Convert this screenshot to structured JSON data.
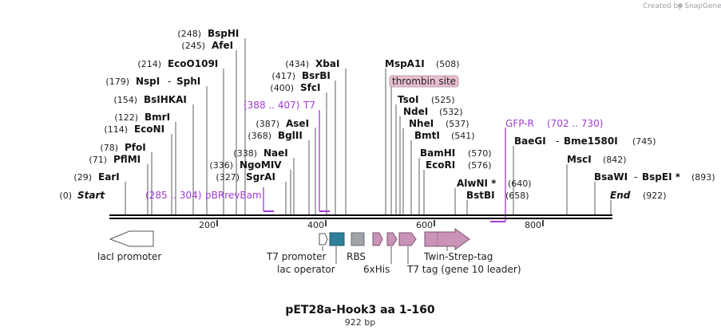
{
  "credit": "Created by SnapGene",
  "map": {
    "title": "pET28a-Hook3 aa 1-160",
    "length": "922 bp",
    "ticks": [
      "200",
      "400",
      "600",
      "800"
    ],
    "sites": [
      {
        "id": "bsphi",
        "pos": "(248)",
        "name": "BspHI"
      },
      {
        "id": "afei",
        "pos": "(245)",
        "name": "AfeI"
      },
      {
        "id": "ecoo109i",
        "pos": "(214)",
        "name": "EcoO109I"
      },
      {
        "id": "nspi",
        "pos": "(179)",
        "name": "NspI"
      },
      {
        "id": "sphi",
        "name": "SphI"
      },
      {
        "id": "bslhkai",
        "pos": "(154)",
        "name": "BsIHKAI"
      },
      {
        "id": "bmri",
        "pos": "(122)",
        "name": "BmrI"
      },
      {
        "id": "econi",
        "pos": "(114)",
        "name": "EcoNI"
      },
      {
        "id": "pfoi",
        "pos": "(78)",
        "name": "PfoI"
      },
      {
        "id": "pflmi",
        "pos": "(71)",
        "name": "PflMI"
      },
      {
        "id": "eari",
        "pos": "(29)",
        "name": "EarI"
      },
      {
        "id": "start",
        "pos": "(0)",
        "name": "Start"
      },
      {
        "id": "xbai",
        "pos": "(434)",
        "name": "XbaI"
      },
      {
        "id": "bsrbi",
        "pos": "(417)",
        "name": "BsrBI"
      },
      {
        "id": "sfci",
        "pos": "(400)",
        "name": "SfcI"
      },
      {
        "id": "asei",
        "pos": "(387)",
        "name": "AseI"
      },
      {
        "id": "bglii",
        "pos": "(368)",
        "name": "BglII"
      },
      {
        "id": "naei",
        "pos": "(338)",
        "name": "NaeI"
      },
      {
        "id": "ngomiv",
        "pos": "(336)",
        "name": "NgoMIV"
      },
      {
        "id": "sgrai",
        "pos": "(327)",
        "name": "SgrAI"
      },
      {
        "id": "mspa1i",
        "pos": "(508)",
        "name": "MspA1I"
      },
      {
        "id": "tsoi",
        "pos": "(525)",
        "name": "TsoI"
      },
      {
        "id": "ndei",
        "pos": "(532)",
        "name": "NdeI"
      },
      {
        "id": "nhei",
        "pos": "(537)",
        "name": "NheI"
      },
      {
        "id": "bmti",
        "pos": "(541)",
        "name": "BmtI"
      },
      {
        "id": "bamhi",
        "pos": "(570)",
        "name": "BamHI"
      },
      {
        "id": "ecori",
        "pos": "(576)",
        "name": "EcoRI"
      },
      {
        "id": "alwni",
        "pos": "(640)",
        "name": "AlwNI *"
      },
      {
        "id": "bstbi",
        "pos": "(658)",
        "name": "BstBI"
      },
      {
        "id": "baegi",
        "pos": "(745)",
        "name": "BaeGI"
      },
      {
        "id": "bme1580i",
        "name": "Bme1580I"
      },
      {
        "id": "msci",
        "pos": "(842)",
        "name": "MscI"
      },
      {
        "id": "bsawi",
        "pos": "(893)",
        "name": "BsaWI"
      },
      {
        "id": "bspei",
        "name": "BspEI *"
      },
      {
        "id": "end",
        "pos": "(922)",
        "name": "End"
      }
    ],
    "primers": [
      {
        "id": "pbrrevbam",
        "range": "(285 .. 304)",
        "name": "pBRrevBam"
      },
      {
        "id": "t7",
        "range": "(388 .. 407)",
        "name": "T7"
      },
      {
        "id": "gfpr",
        "range": "(702 .. 730)",
        "name": "GFP-R"
      }
    ],
    "highlight": {
      "label": "thrombin site"
    },
    "features": [
      {
        "id": "laci-promoter",
        "label": "lacI promoter"
      },
      {
        "id": "t7-promoter",
        "label": "T7 promoter"
      },
      {
        "id": "lac-operator",
        "label": "lac operator"
      },
      {
        "id": "rbs",
        "label": "RBS"
      },
      {
        "id": "6xhis",
        "label": "6xHis"
      },
      {
        "id": "t7-tag",
        "label": "T7 tag (gene 10 leader)"
      },
      {
        "id": "twin-strep-tag",
        "label": "Twin-Strep-tag"
      }
    ],
    "colors": {
      "primer": "#a23bd1",
      "feature_pink": "#c994b8",
      "feature_teal": "#2e7f99",
      "feature_gray": "#9fa3a8",
      "highlight_fill": "#e8bfd0"
    }
  }
}
